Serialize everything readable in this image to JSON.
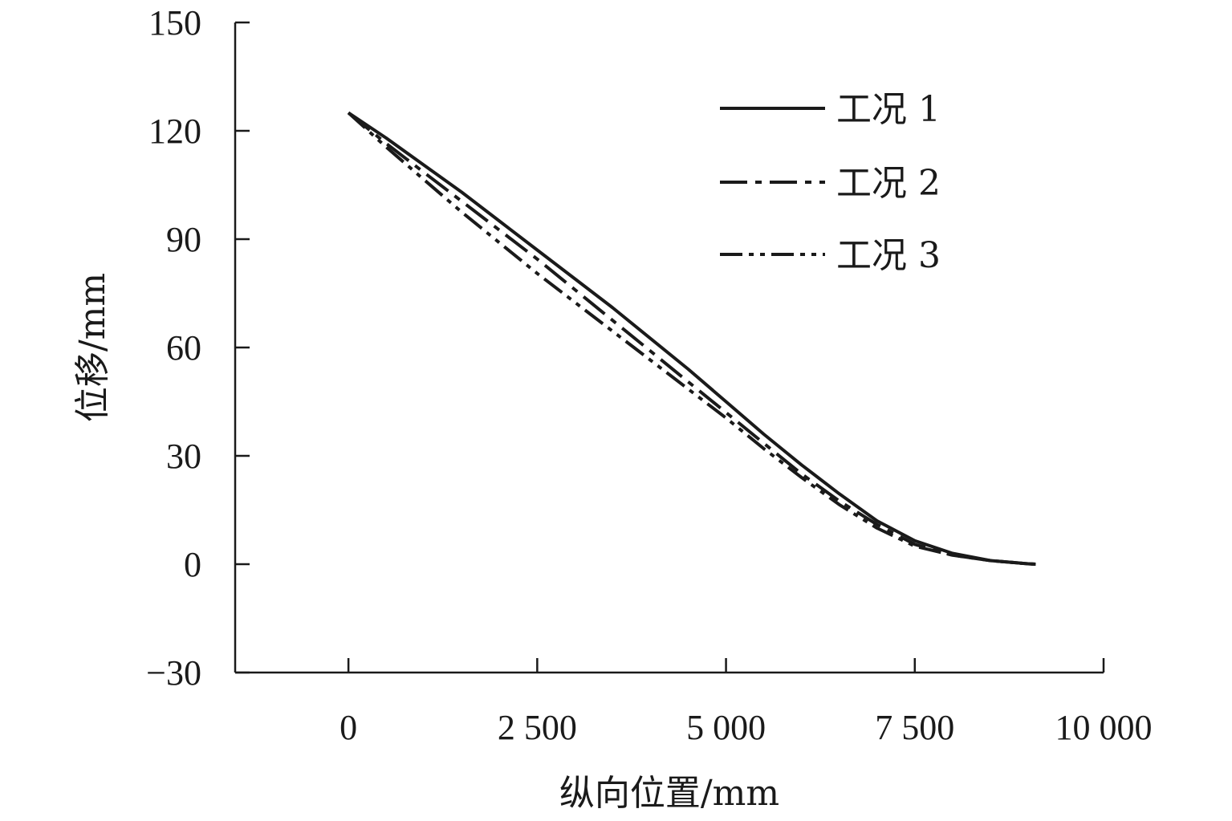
{
  "chart_data": {
    "type": "line",
    "xlabel": "纵向位置/mm",
    "ylabel": "位移/mm",
    "xlim": [
      -1500,
      10000
    ],
    "ylim": [
      -30,
      150
    ],
    "xticks": [
      0,
      2500,
      5000,
      7500,
      10000
    ],
    "xtick_labels": [
      "0",
      "2 500",
      "5 000",
      "7 500",
      "10 000"
    ],
    "yticks": [
      -30,
      0,
      30,
      60,
      90,
      120,
      150
    ],
    "ytick_labels": [
      "−30",
      "0",
      "30",
      "60",
      "90",
      "120",
      "150"
    ],
    "legend_position": "top-right",
    "series": [
      {
        "name": "工况 1",
        "style": "solid",
        "x": [
          0,
          500,
          1000,
          1500,
          2000,
          2500,
          3000,
          3500,
          4000,
          4500,
          5000,
          5500,
          6000,
          6500,
          7000,
          7500,
          8000,
          8500,
          9000,
          9100
        ],
        "y": [
          125,
          118,
          110.5,
          103,
          95,
          87,
          79,
          71,
          62.5,
          54,
          45,
          36,
          27.5,
          19.5,
          12,
          6.5,
          3,
          1,
          0.1,
          0
        ]
      },
      {
        "name": "工况 2",
        "style": "dashdot",
        "x": [
          0,
          500,
          1000,
          1500,
          2000,
          2500,
          3000,
          3500,
          4000,
          4500,
          5000,
          5500,
          6000,
          6500,
          7000,
          7500,
          8000,
          8500,
          9000,
          9100
        ],
        "y": [
          125,
          116.5,
          108.5,
          100.5,
          92.5,
          84.5,
          76,
          67.5,
          59,
          50.5,
          42,
          33.5,
          25,
          17.5,
          11,
          5.5,
          2.5,
          1,
          0.1,
          0
        ]
      },
      {
        "name": "工况 3",
        "style": "dashdotdot",
        "x": [
          0,
          500,
          1000,
          1500,
          2000,
          2500,
          3000,
          3500,
          4000,
          4500,
          5000,
          5500,
          6000,
          6500,
          7000,
          7500,
          8000,
          8500,
          9000,
          9100
        ],
        "y": [
          125,
          115.5,
          106.5,
          97.5,
          89,
          80.5,
          72.5,
          64.5,
          56.5,
          48.5,
          40.5,
          32,
          24,
          16.5,
          10,
          5,
          2.5,
          1,
          0.1,
          0
        ]
      }
    ]
  }
}
